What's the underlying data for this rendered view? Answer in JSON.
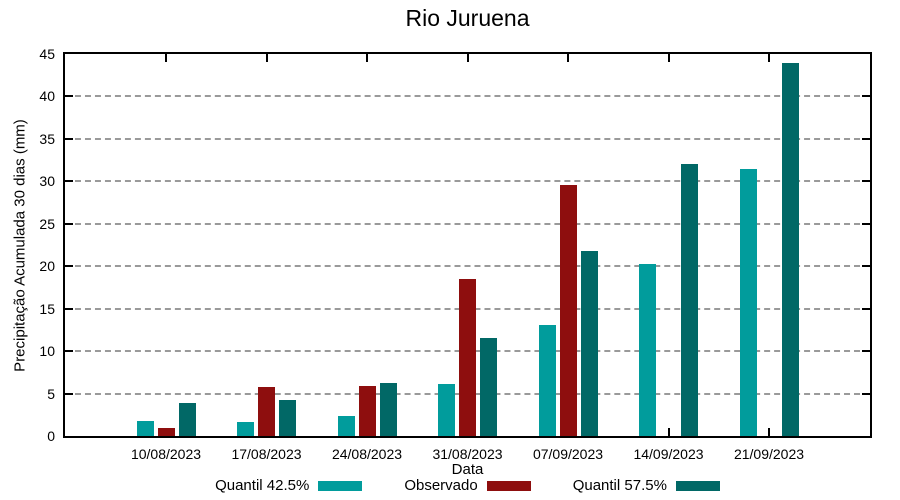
{
  "title": "Rio Juruena",
  "chart_data": {
    "type": "bar",
    "title": "Rio Juruena",
    "xlabel": "Data",
    "ylabel": "Precipitação Acumulada 30 dias (mm)",
    "ylim": [
      0,
      45
    ],
    "ytick_step": 5,
    "grid": "horizontal-dashed",
    "legend_position": "bottom-center",
    "categories": [
      "10/08/2023",
      "17/08/2023",
      "24/08/2023",
      "31/08/2023",
      "07/09/2023",
      "14/09/2023",
      "21/09/2023"
    ],
    "series": [
      {
        "name": "Quantil 42.5%",
        "color": "#019C9C",
        "values": [
          1.8,
          1.7,
          2.4,
          6.1,
          13.1,
          20.3,
          31.4
        ]
      },
      {
        "name": "Observado",
        "color": "#8E0E0E",
        "values": [
          0.9,
          5.8,
          5.9,
          18.5,
          29.6,
          null,
          null
        ]
      },
      {
        "name": "Quantil 57.5%",
        "color": "#016866",
        "values": [
          3.9,
          4.3,
          6.2,
          11.5,
          21.8,
          32.0,
          44.0
        ]
      }
    ]
  },
  "colors": {
    "grid": "#9a9a9a",
    "axis": "#000000",
    "background": "#ffffff"
  }
}
